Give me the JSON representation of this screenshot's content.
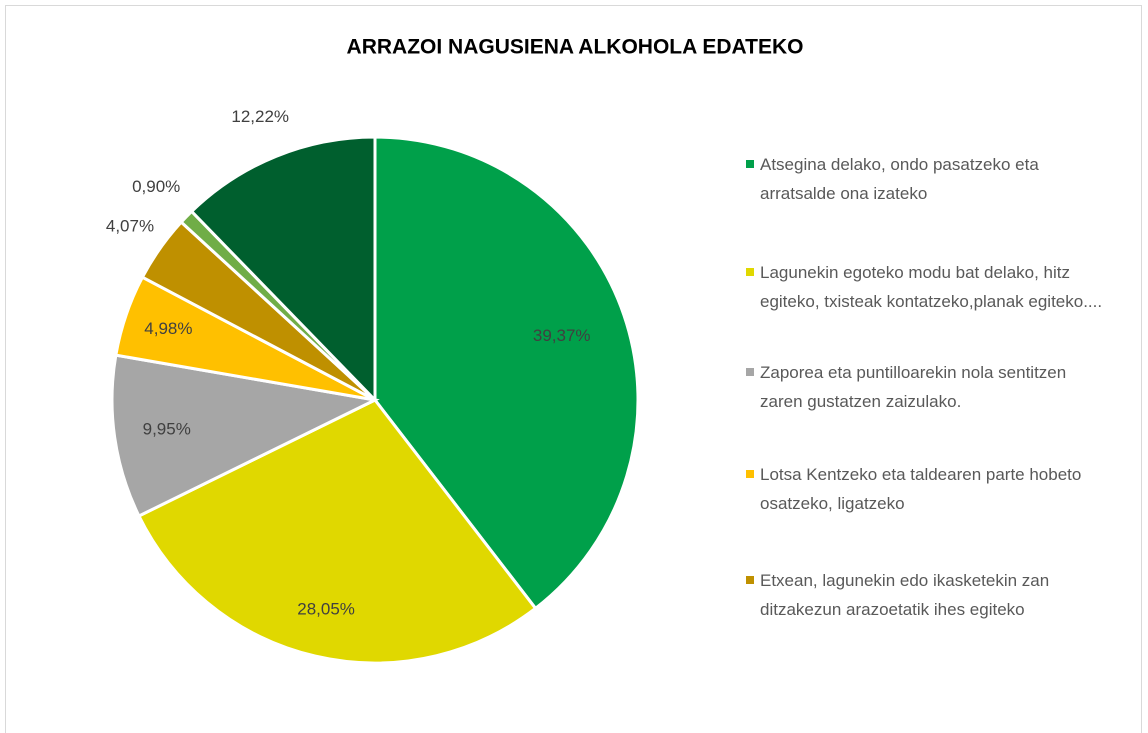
{
  "chart_data": {
    "type": "pie",
    "title": "ARRAZOI NAGUSIENA ALKOHOLA EDATEKO",
    "categories": [
      "Atsegina delako, ondo pasatzeko eta arratsalde ona izateko",
      "Lagunekin egoteko modu bat delako, hitz egiteko, txisteak kontatzeko,planak egiteko....",
      "Zaporea eta puntilloarekin nola sentitzen zaren gustatzen zaizulako.",
      "Lotsa Kentzeko eta taldearen parte hobeto osatzeko, ligatzeko",
      "Etxean, lagunekin edo ikasketekin zan ditzakezun arazoetatik ihes egiteko",
      null,
      null
    ],
    "values": [
      39.37,
      28.05,
      9.95,
      4.98,
      4.07,
      0.9,
      12.22
    ],
    "value_labels": [
      "39,37%",
      "28,05%",
      "9,95%",
      "4,98%",
      "4,07%",
      "0,90%",
      "12,22%"
    ],
    "colors": [
      "#00a04a",
      "#e0d800",
      "#a6a6a6",
      "#ffc000",
      "#bf9000",
      "#70ad47",
      "#005f2e"
    ]
  }
}
